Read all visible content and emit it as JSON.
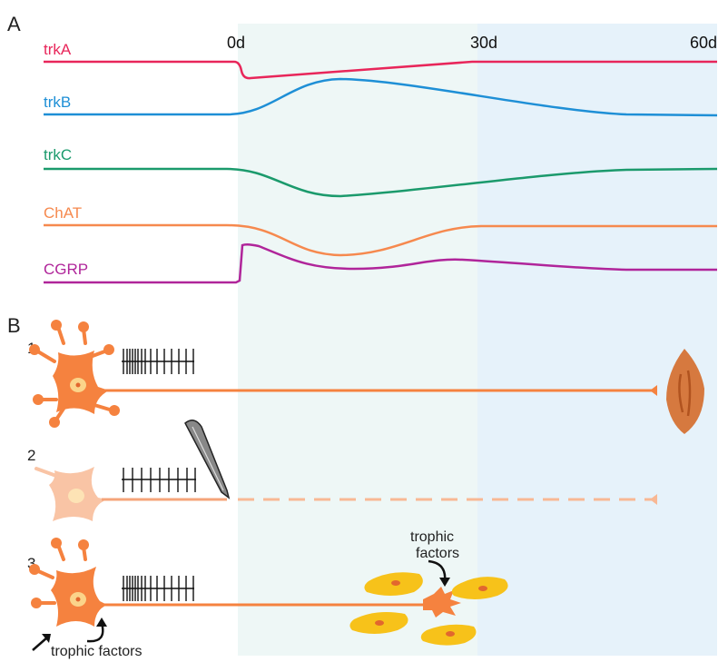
{
  "panel_a": {
    "letter": "A",
    "ticks": [
      "0d",
      "30d",
      "60d"
    ],
    "genes": [
      {
        "label": "trkA",
        "color": "#e8265a"
      },
      {
        "label": "trkB",
        "color": "#1e8fd6"
      },
      {
        "label": "trkC",
        "color": "#1b9a6c"
      },
      {
        "label": "ChAT",
        "color": "#f6894e"
      },
      {
        "label": "CGRP",
        "color": "#b0259a"
      }
    ],
    "shade_early": "#eef7f6",
    "shade_late": "#e6f2fa"
  },
  "panel_b": {
    "letter": "B",
    "steps": [
      "1",
      "2",
      "3"
    ],
    "trophic_top_line1": "trophic",
    "trophic_top_line2": "factors",
    "trophic_bottom": "trophic factors",
    "neuron_color": "#f5823f",
    "neuron_pale": "#f9c4a5",
    "muscle_color": "#d6793f",
    "schwann_color": "#f7c21a"
  }
}
